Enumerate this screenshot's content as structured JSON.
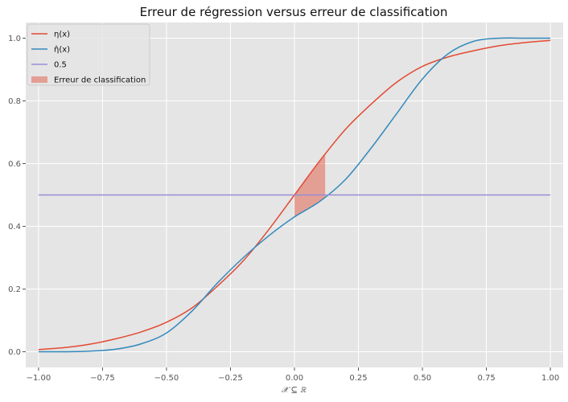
{
  "chart_data": {
    "type": "line",
    "title": "Erreur de régression versus erreur de classification",
    "xlabel": "𝒳 ⊆ ℝ",
    "ylabel": "",
    "xlim": [
      -1.05,
      1.05
    ],
    "ylim": [
      -0.05,
      1.05
    ],
    "xticks": [
      -1.0,
      -0.75,
      -0.5,
      -0.25,
      0.0,
      0.25,
      0.5,
      0.75,
      1.0
    ],
    "xtick_labels": [
      "−1.00",
      "−0.75",
      "−0.50",
      "−0.25",
      "0.00",
      "0.25",
      "0.50",
      "0.75",
      "1.00"
    ],
    "yticks": [
      0.0,
      0.2,
      0.4,
      0.6,
      0.8,
      1.0
    ],
    "ytick_labels": [
      "0.0",
      "0.2",
      "0.4",
      "0.6",
      "0.8",
      "1.0"
    ],
    "grid": true,
    "legend_position": "top-left",
    "series": [
      {
        "name": "η(x)",
        "color": "#E24A33",
        "x": [
          -1.0,
          -0.9,
          -0.8,
          -0.7,
          -0.6,
          -0.5,
          -0.4,
          -0.3,
          -0.2,
          -0.1,
          0.0,
          0.1,
          0.2,
          0.3,
          0.4,
          0.5,
          0.6,
          0.7,
          0.8,
          0.9,
          1.0
        ],
        "y": [
          0.007,
          0.013,
          0.024,
          0.041,
          0.063,
          0.094,
          0.14,
          0.21,
          0.29,
          0.39,
          0.5,
          0.61,
          0.71,
          0.79,
          0.86,
          0.91,
          0.94,
          0.96,
          0.976,
          0.986,
          0.993
        ]
      },
      {
        "name": "η̂(x)",
        "color": "#348ABD",
        "x": [
          -1.0,
          -0.9,
          -0.8,
          -0.7,
          -0.6,
          -0.5,
          -0.4,
          -0.3,
          -0.2,
          -0.1,
          0.0,
          0.1,
          0.2,
          0.3,
          0.4,
          0.5,
          0.6,
          0.7,
          0.8,
          0.9,
          1.0
        ],
        "y": [
          0.0,
          0.0,
          0.002,
          0.008,
          0.025,
          0.06,
          0.13,
          0.22,
          0.3,
          0.37,
          0.43,
          0.48,
          0.55,
          0.65,
          0.76,
          0.87,
          0.95,
          0.99,
          1.0,
          1.0,
          1.0
        ]
      },
      {
        "name": "0.5",
        "color": "#988ED5",
        "x": [
          -1.0,
          1.0
        ],
        "y": [
          0.5,
          0.5
        ]
      }
    ],
    "shaded_region": {
      "name": "Erreur de classification",
      "color": "#E24A33",
      "x": [
        0.0,
        0.02,
        0.04,
        0.06,
        0.08,
        0.1,
        0.12
      ],
      "lower": [
        0.43,
        0.44,
        0.45,
        0.46,
        0.47,
        0.48,
        0.495
      ],
      "upper": [
        0.5,
        0.522,
        0.544,
        0.566,
        0.588,
        0.61,
        0.63
      ]
    }
  }
}
